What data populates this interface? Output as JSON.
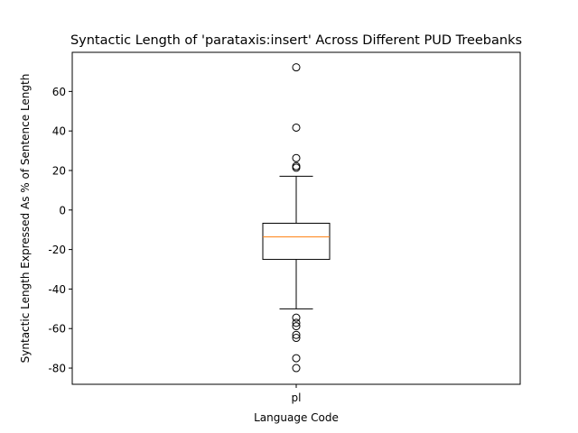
{
  "chart_data": {
    "type": "boxplot",
    "title": "Syntactic Length of 'parataxis:insert' Across Different PUD Treebanks",
    "xlabel": "Language Code",
    "ylabel": "Syntactic Length Expressed As % of Sentence Length",
    "categories": [
      "pl"
    ],
    "ylim": [
      -88.2,
      79.8
    ],
    "yticks": [
      -80,
      -60,
      -40,
      -20,
      0,
      20,
      40,
      60
    ],
    "grid": false,
    "boxes": [
      {
        "category": "pl",
        "whisker_low": -50.0,
        "q1": -25.0,
        "median": -13.6,
        "q3": -6.7,
        "whisker_high": 17.1,
        "outliers": [
          72.2,
          41.7,
          26.3,
          22.2,
          21.4,
          -54.5,
          -57.1,
          -58.8,
          -63.2,
          -64.7,
          -75.0,
          -80.0
        ]
      }
    ],
    "colors": {
      "box": "#000000",
      "median": "#ff7f0e",
      "outlier": "#000000"
    }
  }
}
